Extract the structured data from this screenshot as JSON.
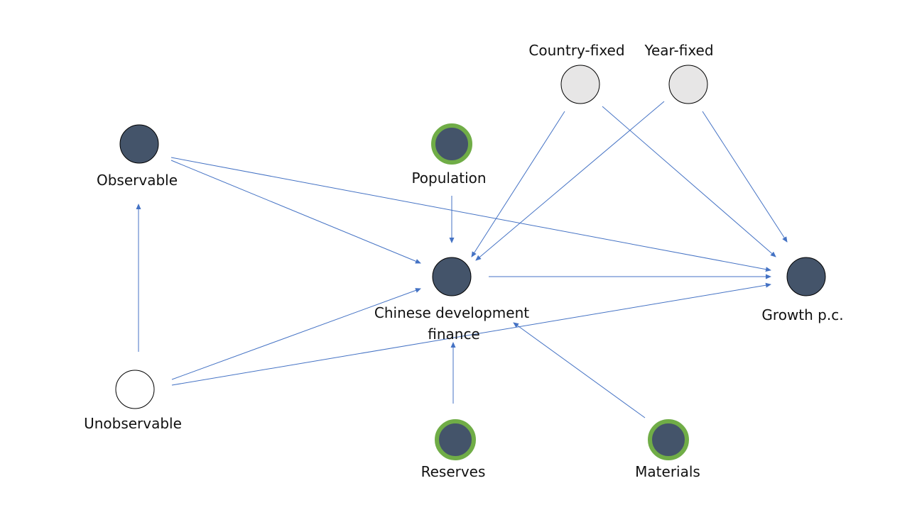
{
  "diagram": {
    "colors": {
      "observed_fill": "#44546a",
      "instrument_ring": "#70ad47",
      "fixed_effect_fill": "#e7e6e6",
      "unobserved_fill": "#ffffff",
      "node_border": "#000000",
      "edge": "#4472c4"
    },
    "labels": {
      "observable": "Observable",
      "unobservable": "Unobservable",
      "population": "Population",
      "cdf_line1": "Chinese development",
      "cdf_line2": "finance",
      "growth": "Growth p.c.",
      "country_fixed": "Country-fixed",
      "year_fixed": "Year-fixed",
      "reserves": "Reserves",
      "materials": "Materials"
    },
    "nodes": [
      {
        "id": "observable",
        "type": "observed"
      },
      {
        "id": "unobservable",
        "type": "unobserved"
      },
      {
        "id": "population",
        "type": "instrument"
      },
      {
        "id": "cdf",
        "type": "observed"
      },
      {
        "id": "growth",
        "type": "observed"
      },
      {
        "id": "country_fixed",
        "type": "fixed-effect"
      },
      {
        "id": "year_fixed",
        "type": "fixed-effect"
      },
      {
        "id": "reserves",
        "type": "instrument"
      },
      {
        "id": "materials",
        "type": "instrument"
      }
    ],
    "edges": [
      {
        "from": "observable",
        "to": "cdf"
      },
      {
        "from": "observable",
        "to": "growth"
      },
      {
        "from": "unobservable",
        "to": "observable"
      },
      {
        "from": "unobservable",
        "to": "cdf"
      },
      {
        "from": "unobservable",
        "to": "growth"
      },
      {
        "from": "population",
        "to": "cdf"
      },
      {
        "from": "cdf",
        "to": "growth"
      },
      {
        "from": "country_fixed",
        "to": "cdf"
      },
      {
        "from": "country_fixed",
        "to": "growth"
      },
      {
        "from": "year_fixed",
        "to": "cdf"
      },
      {
        "from": "year_fixed",
        "to": "growth"
      },
      {
        "from": "reserves",
        "to": "cdf"
      },
      {
        "from": "materials",
        "to": "cdf"
      }
    ]
  }
}
